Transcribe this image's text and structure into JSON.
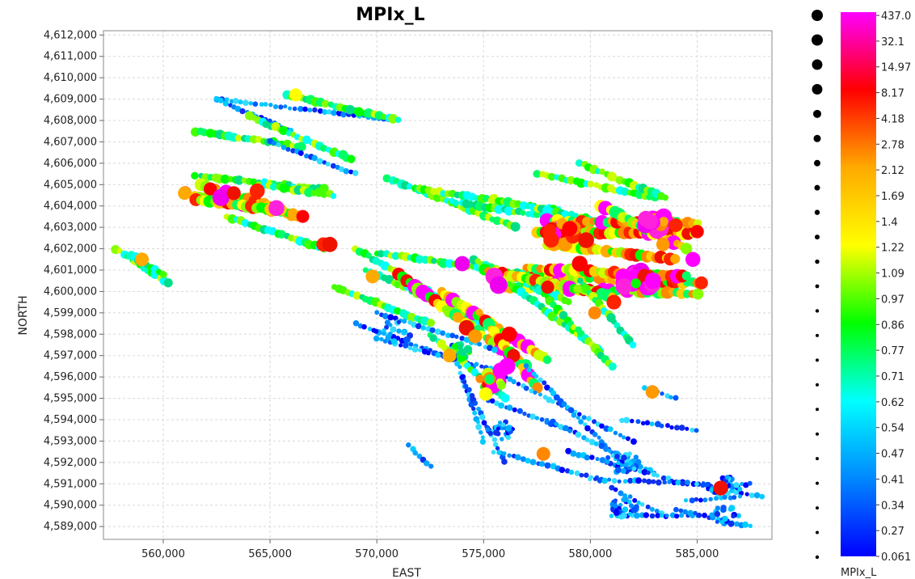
{
  "chart_data": {
    "type": "scatter",
    "title": "MPIx_L",
    "xlabel": "EAST",
    "ylabel": "NORTH",
    "xlim": [
      557200,
      588500
    ],
    "ylim": [
      4588400,
      4612200
    ],
    "x_ticks": [
      "560,000",
      "565,000",
      "570,000",
      "575,000",
      "580,000",
      "585,000"
    ],
    "x_tick_values": [
      560000,
      565000,
      570000,
      575000,
      580000,
      585000
    ],
    "y_ticks": [
      "4,589,000",
      "4,590,000",
      "4,591,000",
      "4,592,000",
      "4,593,000",
      "4,594,000",
      "4,595,000",
      "4,596,000",
      "4,597,000",
      "4,598,000",
      "4,599,000",
      "4,600,000",
      "4,601,000",
      "4,602,000",
      "4,603,000",
      "4,604,000",
      "4,605,000",
      "4,606,000",
      "4,607,000",
      "4,608,000",
      "4,609,000",
      "4,610,000",
      "4,611,000",
      "4,612,000"
    ],
    "y_tick_values": [
      4589000,
      4590000,
      4591000,
      4592000,
      4593000,
      4594000,
      4595000,
      4596000,
      4597000,
      4598000,
      4599000,
      4600000,
      4601000,
      4602000,
      4603000,
      4604000,
      4605000,
      4606000,
      4607000,
      4608000,
      4609000,
      4610000,
      4611000,
      4612000
    ],
    "grid": true,
    "size_and_color_variable": "MPIx_L",
    "colorbar": {
      "label": "MPIx_L",
      "tick_labels": [
        "437.0",
        "32.1",
        "14.97",
        "8.17",
        "4.18",
        "2.78",
        "2.12",
        "1.69",
        "1.4",
        "1.22",
        "1.09",
        "0.97",
        "0.86",
        "0.77",
        "0.71",
        "0.62",
        "0.54",
        "0.47",
        "0.41",
        "0.34",
        "0.27",
        "0.061"
      ],
      "stops": [
        "#ff00ff",
        "#ff0000",
        "#ffaa00",
        "#ffff00",
        "#00ff00",
        "#00ffff",
        "#0088ff",
        "#0000ff"
      ]
    },
    "traverses": [
      {
        "from": [
          562500,
          4609000
        ],
        "to": [
          571000,
          4608000
        ],
        "level": "low"
      },
      {
        "from": [
          565800,
          4609200
        ],
        "to": [
          571000,
          4608000
        ],
        "level": "mid"
      },
      {
        "from": [
          562500,
          4609000
        ],
        "to": [
          566000,
          4607500
        ],
        "level": "low"
      },
      {
        "from": [
          564000,
          4608200
        ],
        "to": [
          568800,
          4606200
        ],
        "level": "mid"
      },
      {
        "from": [
          561500,
          4607500
        ],
        "to": [
          566500,
          4606800
        ],
        "level": "mid"
      },
      {
        "from": [
          565000,
          4607000
        ],
        "to": [
          569000,
          4605500
        ],
        "level": "low"
      },
      {
        "from": [
          561500,
          4605400
        ],
        "to": [
          567500,
          4604800
        ],
        "level": "mid"
      },
      {
        "from": [
          561000,
          4604600
        ],
        "to": [
          566000,
          4603600
        ],
        "level": "high"
      },
      {
        "from": [
          561800,
          4605000
        ],
        "to": [
          566500,
          4603500
        ],
        "level": "high"
      },
      {
        "from": [
          561500,
          4604300
        ],
        "to": [
          565500,
          4603800
        ],
        "level": "high"
      },
      {
        "from": [
          564500,
          4605000
        ],
        "to": [
          568000,
          4604500
        ],
        "level": "mid"
      },
      {
        "from": [
          563000,
          4603500
        ],
        "to": [
          567500,
          4602000
        ],
        "level": "mid"
      },
      {
        "from": [
          557800,
          4602000
        ],
        "to": [
          560200,
          4600400
        ],
        "level": "mid"
      },
      {
        "from": [
          558500,
          4601700
        ],
        "to": [
          560000,
          4600800
        ],
        "level": "mid"
      },
      {
        "from": [
          570500,
          4605300
        ],
        "to": [
          576500,
          4603000
        ],
        "level": "mid"
      },
      {
        "from": [
          572000,
          4604800
        ],
        "to": [
          578500,
          4603800
        ],
        "level": "mid"
      },
      {
        "from": [
          573500,
          4604200
        ],
        "to": [
          580000,
          4603200
        ],
        "level": "mid"
      },
      {
        "from": [
          575500,
          4604300
        ],
        "to": [
          582000,
          4603000
        ],
        "level": "mid"
      },
      {
        "from": [
          577500,
          4605500
        ],
        "to": [
          583000,
          4604400
        ],
        "level": "mid"
      },
      {
        "from": [
          579500,
          4606000
        ],
        "to": [
          583500,
          4604400
        ],
        "level": "mid"
      },
      {
        "from": [
          577500,
          4602800
        ],
        "to": [
          584800,
          4602700
        ],
        "level": "high"
      },
      {
        "from": [
          578000,
          4603300
        ],
        "to": [
          585000,
          4603200
        ],
        "level": "high"
      },
      {
        "from": [
          578000,
          4602200
        ],
        "to": [
          584000,
          4601500
        ],
        "level": "high"
      },
      {
        "from": [
          580500,
          4604000
        ],
        "to": [
          584500,
          4602000
        ],
        "level": "high"
      },
      {
        "from": [
          576500,
          4600800
        ],
        "to": [
          585000,
          4600400
        ],
        "level": "high"
      },
      {
        "from": [
          576000,
          4600200
        ],
        "to": [
          585000,
          4599900
        ],
        "level": "high"
      },
      {
        "from": [
          577000,
          4601100
        ],
        "to": [
          584500,
          4600700
        ],
        "level": "high"
      },
      {
        "from": [
          570000,
          4601800
        ],
        "to": [
          577000,
          4600800
        ],
        "level": "mid"
      },
      {
        "from": [
          574500,
          4601500
        ],
        "to": [
          579000,
          4599500
        ],
        "level": "mid"
      },
      {
        "from": [
          575000,
          4601000
        ],
        "to": [
          581000,
          4599800
        ],
        "level": "high"
      },
      {
        "from": [
          569000,
          4602000
        ],
        "to": [
          575000,
          4598500
        ],
        "level": "mid"
      },
      {
        "from": [
          569500,
          4601000
        ],
        "to": [
          574000,
          4599000
        ],
        "level": "mid"
      },
      {
        "from": [
          568000,
          4600200
        ],
        "to": [
          572500,
          4598500
        ],
        "level": "mid"
      },
      {
        "from": [
          571000,
          4600800
        ],
        "to": [
          577000,
          4596500
        ],
        "level": "high"
      },
      {
        "from": [
          573000,
          4600000
        ],
        "to": [
          578000,
          4596800
        ],
        "level": "high"
      },
      {
        "from": [
          574800,
          4599000
        ],
        "to": [
          577500,
          4595500
        ],
        "level": "high"
      },
      {
        "from": [
          576000,
          4600500
        ],
        "to": [
          580500,
          4597200
        ],
        "level": "mid"
      },
      {
        "from": [
          577500,
          4600200
        ],
        "to": [
          581000,
          4596500
        ],
        "level": "mid"
      },
      {
        "from": [
          579500,
          4600500
        ],
        "to": [
          582000,
          4597500
        ],
        "level": "mid"
      },
      {
        "from": [
          570000,
          4599000
        ],
        "to": [
          575500,
          4597300
        ],
        "level": "low"
      },
      {
        "from": [
          569000,
          4598500
        ],
        "to": [
          574500,
          4596500
        ],
        "level": "low"
      },
      {
        "from": [
          570000,
          4597800
        ],
        "to": [
          576000,
          4596200
        ],
        "level": "low"
      },
      {
        "from": [
          572500,
          4598000
        ],
        "to": [
          576000,
          4595000
        ],
        "level": "mid"
      },
      {
        "from": [
          573500,
          4597500
        ],
        "to": [
          575000,
          4593000
        ],
        "level": "low"
      },
      {
        "from": [
          574000,
          4596000
        ],
        "to": [
          576000,
          4592000
        ],
        "level": "low"
      },
      {
        "from": [
          575000,
          4595000
        ],
        "to": [
          579000,
          4593500
        ],
        "level": "low"
      },
      {
        "from": [
          576000,
          4596000
        ],
        "to": [
          582000,
          4593000
        ],
        "level": "low"
      },
      {
        "from": [
          577000,
          4596500
        ],
        "to": [
          581500,
          4592000
        ],
        "level": "low"
      },
      {
        "from": [
          578000,
          4594000
        ],
        "to": [
          583000,
          4591500
        ],
        "level": "low"
      },
      {
        "from": [
          575500,
          4592500
        ],
        "to": [
          580500,
          4591200
        ],
        "level": "low"
      },
      {
        "from": [
          579000,
          4592500
        ],
        "to": [
          584500,
          4591000
        ],
        "level": "low"
      },
      {
        "from": [
          580000,
          4591200
        ],
        "to": [
          585500,
          4591000
        ],
        "level": "low"
      },
      {
        "from": [
          581000,
          4590800
        ],
        "to": [
          583500,
          4589500
        ],
        "level": "low"
      },
      {
        "from": [
          581000,
          4589500
        ],
        "to": [
          585000,
          4589500
        ],
        "level": "low"
      },
      {
        "from": [
          582500,
          4595500
        ],
        "to": [
          584000,
          4595000
        ],
        "level": "low"
      },
      {
        "from": [
          581500,
          4594000
        ],
        "to": [
          585000,
          4593500
        ],
        "level": "low"
      },
      {
        "from": [
          571500,
          4592800
        ],
        "to": [
          572500,
          4591800
        ],
        "level": "low"
      },
      {
        "from": [
          585000,
          4591000
        ],
        "to": [
          588000,
          4590400
        ],
        "level": "low"
      },
      {
        "from": [
          584000,
          4589800
        ],
        "to": [
          587500,
          4589000
        ],
        "level": "low"
      },
      {
        "from": [
          585500,
          4590800
        ],
        "to": [
          587500,
          4591000
        ],
        "level": "low"
      },
      {
        "from": [
          584500,
          4590200
        ],
        "to": [
          587000,
          4590400
        ],
        "level": "low"
      }
    ],
    "clusters": [
      {
        "x": 582200,
        "y": 4600500,
        "radius": 800,
        "level": "magenta",
        "count": 32
      },
      {
        "x": 583200,
        "y": 4603100,
        "radius": 700,
        "level": "magenta",
        "count": 22
      },
      {
        "x": 578500,
        "y": 4602700,
        "radius": 900,
        "level": "red",
        "count": 22
      },
      {
        "x": 580800,
        "y": 4594700,
        "radius": 600,
        "level": "low",
        "count": 0
      },
      {
        "x": 575300,
        "y": 4595800,
        "radius": 700,
        "level": "high",
        "count": 14
      },
      {
        "x": 575800,
        "y": 4593500,
        "radius": 700,
        "level": "low",
        "count": 30
      },
      {
        "x": 581500,
        "y": 4592000,
        "radius": 800,
        "level": "low",
        "count": 30
      },
      {
        "x": 581600,
        "y": 4589900,
        "radius": 700,
        "level": "low",
        "count": 30
      },
      {
        "x": 586300,
        "y": 4590900,
        "radius": 800,
        "level": "low",
        "count": 25
      },
      {
        "x": 586300,
        "y": 4589500,
        "radius": 700,
        "level": "low",
        "count": 20
      },
      {
        "x": 570800,
        "y": 4598100,
        "radius": 900,
        "level": "low",
        "count": 20
      },
      {
        "x": 573800,
        "y": 4597200,
        "radius": 600,
        "level": "mid",
        "count": 15
      }
    ],
    "highlights": [
      {
        "x": 561000,
        "y": 4604600,
        "level": "orange"
      },
      {
        "x": 562200,
        "y": 4604800,
        "level": "red"
      },
      {
        "x": 562700,
        "y": 4604400,
        "level": "magenta"
      },
      {
        "x": 563300,
        "y": 4604600,
        "level": "red"
      },
      {
        "x": 564400,
        "y": 4604700,
        "level": "red"
      },
      {
        "x": 565300,
        "y": 4603900,
        "level": "magenta"
      },
      {
        "x": 567500,
        "y": 4602200,
        "level": "red"
      },
      {
        "x": 559000,
        "y": 4601500,
        "level": "orange"
      },
      {
        "x": 569800,
        "y": 4600700,
        "level": "orange"
      },
      {
        "x": 574000,
        "y": 4601300,
        "level": "magenta"
      },
      {
        "x": 575500,
        "y": 4600700,
        "level": "magenta"
      },
      {
        "x": 575700,
        "y": 4600300,
        "level": "magenta"
      },
      {
        "x": 578000,
        "y": 4600200,
        "level": "red"
      },
      {
        "x": 579500,
        "y": 4601300,
        "level": "red"
      },
      {
        "x": 579800,
        "y": 4602400,
        "level": "red"
      },
      {
        "x": 580200,
        "y": 4599000,
        "level": "orange"
      },
      {
        "x": 581100,
        "y": 4599500,
        "level": "red"
      },
      {
        "x": 585000,
        "y": 4602800,
        "level": "red"
      },
      {
        "x": 584800,
        "y": 4601500,
        "level": "magenta"
      },
      {
        "x": 585200,
        "y": 4600400,
        "level": "red"
      },
      {
        "x": 574200,
        "y": 4598300,
        "level": "red"
      },
      {
        "x": 574600,
        "y": 4597900,
        "level": "orange"
      },
      {
        "x": 576200,
        "y": 4598000,
        "level": "red"
      },
      {
        "x": 576400,
        "y": 4597000,
        "level": "red"
      },
      {
        "x": 576100,
        "y": 4596500,
        "level": "magenta"
      },
      {
        "x": 575800,
        "y": 4596300,
        "level": "magenta"
      },
      {
        "x": 573400,
        "y": 4597000,
        "level": "orange"
      },
      {
        "x": 577800,
        "y": 4592400,
        "level": "orange"
      },
      {
        "x": 582900,
        "y": 4595300,
        "level": "orange"
      },
      {
        "x": 575100,
        "y": 4595200,
        "level": "yellow"
      },
      {
        "x": 586100,
        "y": 4590800,
        "level": "red"
      },
      {
        "x": 566200,
        "y": 4609200,
        "level": "yellow"
      },
      {
        "x": 567800,
        "y": 4602200,
        "level": "red"
      },
      {
        "x": 582600,
        "y": 4603400,
        "level": "magenta"
      },
      {
        "x": 584000,
        "y": 4603100,
        "level": "red"
      },
      {
        "x": 583400,
        "y": 4602200,
        "level": "orange"
      }
    ]
  }
}
